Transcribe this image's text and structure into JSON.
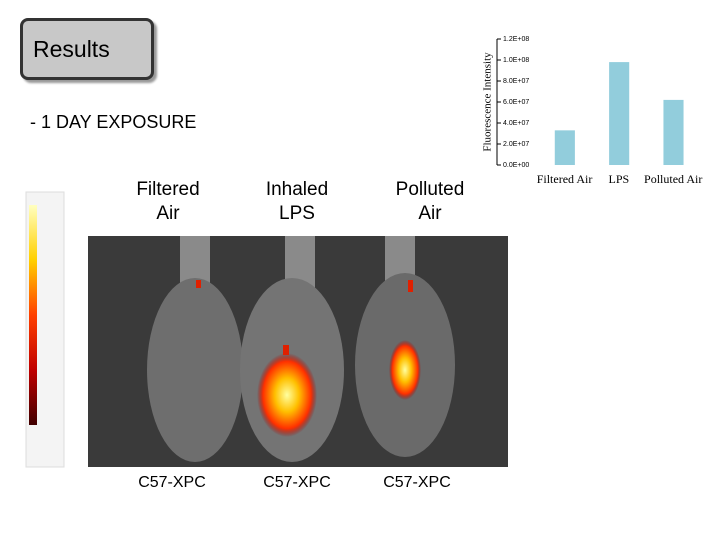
{
  "header": {
    "title": "Results",
    "subtitle": "- 1 DAY EXPOSURE"
  },
  "groups": [
    {
      "label": "Filtered Air",
      "strain": "C57-XPC"
    },
    {
      "label": "Inhaled LPS",
      "strain": "C57-XPC"
    },
    {
      "label": "Polluted Air",
      "strain": "C57-XPC"
    }
  ],
  "chart_data": {
    "type": "bar",
    "ylabel": "Fluorescence Intensity",
    "categories": [
      "Filtered Air",
      "LPS",
      "Polluted Air"
    ],
    "values": [
      33000000,
      98000000,
      62000000
    ],
    "color": "#92cddc",
    "ylim": [
      0,
      120000000
    ],
    "yticks": [
      {
        "value": 0,
        "label": "0.0E+00"
      },
      {
        "value": 20000000,
        "label": "2.0E+07"
      },
      {
        "value": 40000000,
        "label": "4.0E+07"
      },
      {
        "value": 60000000,
        "label": "6.0E+07"
      },
      {
        "value": 80000000,
        "label": "8.0E+07"
      },
      {
        "value": 100000000,
        "label": "1.0E+08"
      },
      {
        "value": 120000000,
        "label": "1.2E+08"
      }
    ]
  }
}
